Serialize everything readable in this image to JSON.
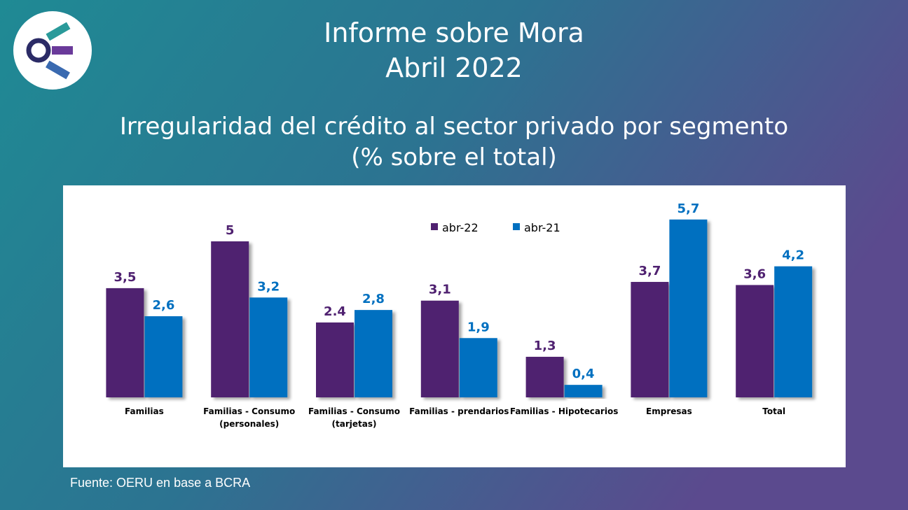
{
  "header": {
    "title": [
      "Informe sobre Mora",
      "Abril 2022"
    ]
  },
  "chart_data": {
    "type": "bar",
    "title": [
      "Irregularidad del crédito al sector privado por segmento",
      "(% sobre el total)"
    ],
    "categories": [
      [
        "Familias"
      ],
      [
        "Familias - Consumo",
        "(personales)"
      ],
      [
        "Familias - Consumo",
        "(tarjetas)"
      ],
      [
        "Familias -  prendarios"
      ],
      [
        "Familias -  Hipotecarios"
      ],
      [
        "Empresas"
      ],
      [
        "Total"
      ]
    ],
    "series": [
      {
        "name": "abr-22",
        "color": "#4f2170",
        "values": [
          3.5,
          5,
          2.4,
          3.1,
          1.3,
          3.7,
          3.6
        ],
        "value_labels": [
          "3,5",
          "5",
          "2.4",
          "3,1",
          "1,3",
          "3,7",
          "3,6"
        ]
      },
      {
        "name": "abr-21",
        "color": "#0070c0",
        "values": [
          2.6,
          3.2,
          2.8,
          1.9,
          0.4,
          5.7,
          4.2
        ],
        "value_labels": [
          "2,6",
          "3,2",
          "2,8",
          "1,9",
          "0,4",
          "5,7",
          "4,2"
        ]
      }
    ],
    "legend": "top"
  },
  "source": "Fuente: OERU  en base a BCRA"
}
